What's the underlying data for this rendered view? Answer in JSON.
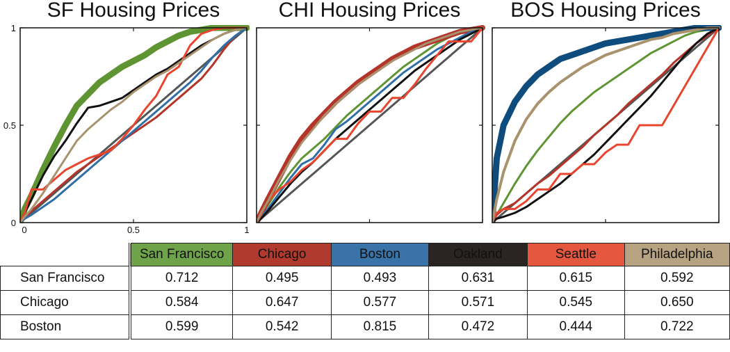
{
  "chart_data": [
    {
      "type": "line",
      "title": "SF Housing Prices",
      "xlim": [
        0,
        1
      ],
      "ylim": [
        0,
        1
      ],
      "xticks": [
        "0",
        "0.5",
        "1"
      ],
      "yticks": [
        "0",
        "0.5",
        "1"
      ],
      "x": [
        0,
        0.02,
        0.05,
        0.1,
        0.15,
        0.2,
        0.25,
        0.3,
        0.35,
        0.4,
        0.45,
        0.5,
        0.55,
        0.6,
        0.65,
        0.7,
        0.75,
        0.8,
        0.85,
        0.9,
        0.95,
        1
      ],
      "series": [
        {
          "name": "Diagonal",
          "color": "#555555",
          "width": 3,
          "values": [
            0,
            0.02,
            0.05,
            0.1,
            0.15,
            0.2,
            0.25,
            0.3,
            0.35,
            0.4,
            0.45,
            0.5,
            0.55,
            0.6,
            0.65,
            0.7,
            0.75,
            0.8,
            0.85,
            0.9,
            0.95,
            1
          ]
        },
        {
          "name": "San Francisco",
          "color": "#5E9532",
          "width": 9,
          "values": [
            0,
            0.07,
            0.14,
            0.27,
            0.39,
            0.5,
            0.6,
            0.66,
            0.72,
            0.76,
            0.8,
            0.83,
            0.86,
            0.9,
            0.93,
            0.96,
            0.98,
            0.99,
            1,
            1,
            1,
            1
          ]
        },
        {
          "name": "Chicago",
          "color": "#B5342A",
          "width": 3,
          "values": [
            0,
            0.02,
            0.06,
            0.11,
            0.16,
            0.21,
            0.26,
            0.3,
            0.34,
            0.38,
            0.42,
            0.46,
            0.5,
            0.54,
            0.59,
            0.64,
            0.69,
            0.74,
            0.81,
            0.89,
            0.96,
            1
          ]
        },
        {
          "name": "Boston",
          "color": "#2F6EA6",
          "width": 3,
          "values": [
            0,
            0.02,
            0.04,
            0.08,
            0.12,
            0.17,
            0.22,
            0.27,
            0.32,
            0.37,
            0.42,
            0.47,
            0.52,
            0.57,
            0.62,
            0.67,
            0.72,
            0.78,
            0.85,
            0.91,
            0.96,
            1
          ]
        },
        {
          "name": "Oakland",
          "color": "#111111",
          "width": 3,
          "values": [
            0,
            0.05,
            0.12,
            0.24,
            0.34,
            0.42,
            0.51,
            0.59,
            0.6,
            0.62,
            0.64,
            0.68,
            0.72,
            0.76,
            0.79,
            0.83,
            0.87,
            0.91,
            0.94,
            0.97,
            0.99,
            1
          ]
        },
        {
          "name": "Seattle",
          "color": "#E8442E",
          "width": 3,
          "values": [
            0,
            0.05,
            0.17,
            0.17,
            0.22,
            0.27,
            0.3,
            0.33,
            0.35,
            0.37,
            0.43,
            0.5,
            0.58,
            0.65,
            0.76,
            0.8,
            0.91,
            0.97,
            0.99,
            1,
            1,
            1
          ]
        },
        {
          "name": "Philadelphia",
          "color": "#A8936E",
          "width": 3,
          "values": [
            0,
            0.03,
            0.07,
            0.15,
            0.24,
            0.33,
            0.42,
            0.48,
            0.53,
            0.58,
            0.62,
            0.67,
            0.71,
            0.75,
            0.78,
            0.82,
            0.86,
            0.9,
            0.94,
            0.97,
            0.99,
            1
          ]
        }
      ]
    },
    {
      "type": "line",
      "title": "CHI Housing Prices",
      "xlim": [
        0,
        1
      ],
      "ylim": [
        0,
        1
      ],
      "xticks": [
        "",
        "",
        ""
      ],
      "yticks": [
        "",
        "",
        ""
      ],
      "x": [
        0,
        0.02,
        0.05,
        0.1,
        0.15,
        0.2,
        0.25,
        0.3,
        0.35,
        0.4,
        0.45,
        0.5,
        0.55,
        0.6,
        0.65,
        0.7,
        0.75,
        0.8,
        0.85,
        0.9,
        0.95,
        1
      ],
      "series": [
        {
          "name": "Diagonal",
          "color": "#555555",
          "width": 3,
          "values": [
            0,
            0.02,
            0.05,
            0.1,
            0.15,
            0.2,
            0.25,
            0.3,
            0.35,
            0.4,
            0.45,
            0.5,
            0.55,
            0.6,
            0.65,
            0.7,
            0.75,
            0.8,
            0.85,
            0.9,
            0.95,
            1
          ]
        },
        {
          "name": "San Francisco",
          "color": "#5E9532",
          "width": 3,
          "values": [
            0,
            0.04,
            0.09,
            0.18,
            0.26,
            0.33,
            0.38,
            0.43,
            0.49,
            0.55,
            0.6,
            0.65,
            0.7,
            0.75,
            0.8,
            0.84,
            0.88,
            0.92,
            0.95,
            0.98,
            0.99,
            1
          ]
        },
        {
          "name": "Chicago",
          "color": "#B5342A",
          "width": 8,
          "values": [
            0,
            0.05,
            0.12,
            0.23,
            0.34,
            0.43,
            0.5,
            0.56,
            0.62,
            0.67,
            0.72,
            0.76,
            0.8,
            0.84,
            0.87,
            0.9,
            0.92,
            0.94,
            0.96,
            0.98,
            0.99,
            1
          ]
        },
        {
          "name": "Boston",
          "color": "#2F6EA6",
          "width": 3,
          "values": [
            0,
            0.03,
            0.07,
            0.15,
            0.23,
            0.3,
            0.33,
            0.4,
            0.48,
            0.52,
            0.57,
            0.62,
            0.67,
            0.72,
            0.77,
            0.81,
            0.85,
            0.89,
            0.92,
            0.95,
            0.98,
            1
          ]
        },
        {
          "name": "Oakland",
          "color": "#111111",
          "width": 3,
          "values": [
            0,
            0.02,
            0.06,
            0.13,
            0.2,
            0.26,
            0.31,
            0.37,
            0.43,
            0.48,
            0.53,
            0.58,
            0.63,
            0.68,
            0.73,
            0.78,
            0.82,
            0.86,
            0.9,
            0.94,
            0.97,
            1
          ]
        },
        {
          "name": "Seattle",
          "color": "#E8442E",
          "width": 3,
          "values": [
            0,
            0.04,
            0.11,
            0.17,
            0.21,
            0.27,
            0.31,
            0.37,
            0.43,
            0.43,
            0.51,
            0.57,
            0.57,
            0.64,
            0.64,
            0.71,
            0.79,
            0.86,
            0.93,
            0.93,
            0.93,
            1
          ]
        },
        {
          "name": "Philadelphia",
          "color": "#A8936E",
          "width": 3,
          "values": [
            0,
            0.05,
            0.11,
            0.22,
            0.32,
            0.41,
            0.48,
            0.55,
            0.61,
            0.66,
            0.71,
            0.75,
            0.79,
            0.83,
            0.86,
            0.89,
            0.92,
            0.94,
            0.96,
            0.98,
            0.99,
            1
          ]
        }
      ]
    },
    {
      "type": "line",
      "title": "BOS Housing Prices",
      "xlim": [
        0,
        1
      ],
      "ylim": [
        0,
        1
      ],
      "xticks": [
        "",
        "",
        ""
      ],
      "yticks": [
        "",
        "",
        ""
      ],
      "x": [
        0,
        0.02,
        0.05,
        0.1,
        0.15,
        0.2,
        0.25,
        0.3,
        0.35,
        0.4,
        0.45,
        0.5,
        0.55,
        0.6,
        0.65,
        0.7,
        0.75,
        0.8,
        0.85,
        0.9,
        0.95,
        1
      ],
      "series": [
        {
          "name": "Diagonal",
          "color": "#555555",
          "width": 3,
          "values": [
            0,
            0.02,
            0.05,
            0.1,
            0.15,
            0.2,
            0.25,
            0.3,
            0.35,
            0.4,
            0.45,
            0.5,
            0.55,
            0.6,
            0.65,
            0.7,
            0.75,
            0.8,
            0.85,
            0.9,
            0.95,
            1
          ]
        },
        {
          "name": "San Francisco",
          "color": "#5E9532",
          "width": 3,
          "values": [
            0,
            0.04,
            0.1,
            0.2,
            0.29,
            0.37,
            0.44,
            0.51,
            0.57,
            0.62,
            0.67,
            0.71,
            0.75,
            0.79,
            0.83,
            0.87,
            0.9,
            0.93,
            0.96,
            0.98,
            0.99,
            1
          ]
        },
        {
          "name": "Chicago",
          "color": "#B5342A",
          "width": 3,
          "values": [
            0,
            0.04,
            0.07,
            0.1,
            0.15,
            0.2,
            0.24,
            0.29,
            0.34,
            0.39,
            0.45,
            0.5,
            0.55,
            0.61,
            0.66,
            0.71,
            0.76,
            0.82,
            0.87,
            0.92,
            0.96,
            1
          ]
        },
        {
          "name": "Boston",
          "color": "#0E4C7E",
          "width": 9,
          "values": [
            0,
            0.33,
            0.5,
            0.62,
            0.7,
            0.76,
            0.8,
            0.84,
            0.86,
            0.88,
            0.9,
            0.92,
            0.93,
            0.94,
            0.95,
            0.96,
            0.97,
            0.98,
            0.99,
            1,
            1,
            1
          ]
        },
        {
          "name": "Oakland",
          "color": "#111111",
          "width": 3,
          "values": [
            0,
            0.02,
            0.03,
            0.05,
            0.08,
            0.12,
            0.16,
            0.2,
            0.25,
            0.3,
            0.35,
            0.41,
            0.47,
            0.53,
            0.59,
            0.65,
            0.72,
            0.79,
            0.86,
            0.92,
            0.97,
            1
          ]
        },
        {
          "name": "Seattle",
          "color": "#E8442E",
          "width": 3,
          "values": [
            0,
            0.05,
            0.07,
            0.07,
            0.11,
            0.17,
            0.17,
            0.25,
            0.25,
            0.3,
            0.3,
            0.36,
            0.4,
            0.4,
            0.5,
            0.5,
            0.5,
            0.6,
            0.7,
            0.8,
            0.9,
            1
          ]
        },
        {
          "name": "Philadelphia",
          "color": "#A8936E",
          "width": 4,
          "values": [
            0,
            0.12,
            0.26,
            0.42,
            0.53,
            0.61,
            0.67,
            0.72,
            0.76,
            0.8,
            0.83,
            0.86,
            0.88,
            0.9,
            0.92,
            0.94,
            0.95,
            0.97,
            0.98,
            0.99,
            1,
            1
          ]
        }
      ]
    }
  ],
  "table": {
    "headers": [
      {
        "label": "San Francisco",
        "bg": "#6FA34A"
      },
      {
        "label": "Chicago",
        "bg": "#B13A2E"
      },
      {
        "label": "Boston",
        "bg": "#3A73A7"
      },
      {
        "label": "Oakland",
        "bg": "#2A2523"
      },
      {
        "label": "Seattle",
        "bg": "#E5583F"
      },
      {
        "label": "Philadelphia",
        "bg": "#B7A382"
      }
    ],
    "rows": [
      {
        "label": "San Francisco",
        "values": [
          "0.712",
          "0.495",
          "0.493",
          "0.631",
          "0.615",
          "0.592"
        ]
      },
      {
        "label": "Chicago",
        "values": [
          "0.584",
          "0.647",
          "0.577",
          "0.571",
          "0.545",
          "0.650"
        ]
      },
      {
        "label": "Boston",
        "values": [
          "0.599",
          "0.542",
          "0.815",
          "0.472",
          "0.444",
          "0.722"
        ]
      }
    ]
  }
}
